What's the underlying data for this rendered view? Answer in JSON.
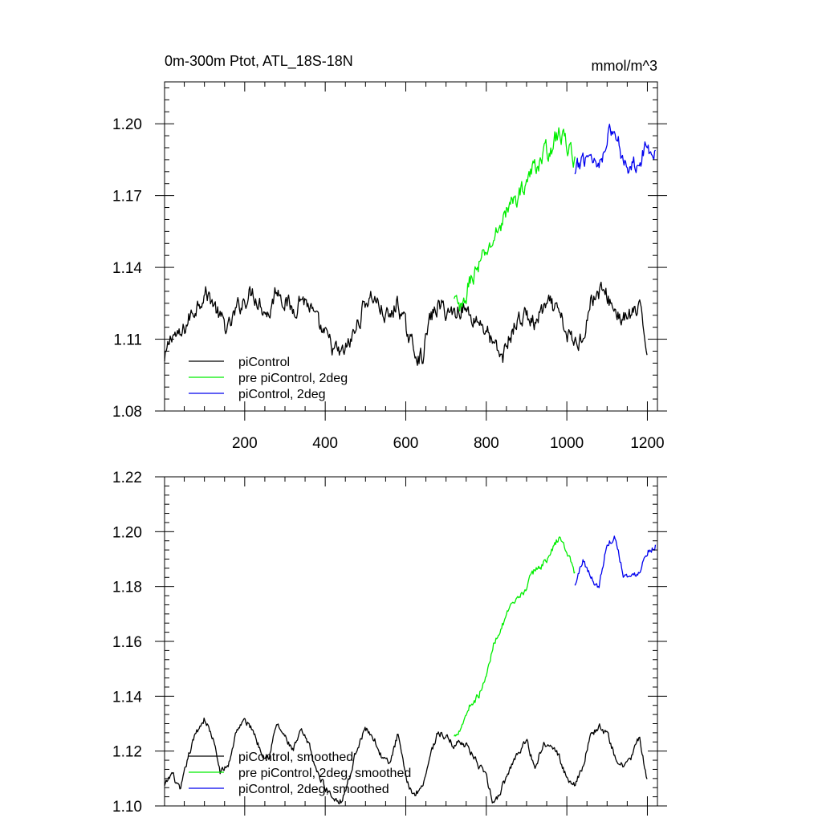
{
  "chart_data": [
    {
      "type": "line",
      "title": "0m-300m Ptot, ATL_18S-18N",
      "units": "mmol/m^3",
      "xlim": [
        1,
        1225
      ],
      "ylim": [
        1.08,
        1.2175
      ],
      "x_ticks": [
        200,
        400,
        600,
        800,
        1000,
        1200
      ],
      "x_tick_labels": [
        "200",
        "400",
        "600",
        "800",
        "1000",
        "1200"
      ],
      "y_ticks": [
        1.08,
        1.11,
        1.14,
        1.17,
        1.2
      ],
      "y_tick_labels": [
        "1.08",
        "1.11",
        "1.14",
        "1.17",
        "1.20"
      ],
      "legend_position": "bottom-left",
      "series": [
        {
          "name": "piControl",
          "color": "#000000",
          "x": [
            1,
            20,
            40,
            60,
            80,
            100,
            120,
            140,
            160,
            180,
            200,
            220,
            240,
            260,
            280,
            300,
            320,
            340,
            360,
            380,
            400,
            420,
            440,
            460,
            480,
            500,
            520,
            540,
            560,
            580,
            600,
            620,
            640,
            660,
            680,
            700,
            720,
            740,
            760,
            780,
            800,
            820,
            840,
            860,
            880,
            900,
            920,
            940,
            960,
            980,
            1000,
            1020,
            1040,
            1060,
            1080,
            1100,
            1120,
            1140,
            1160,
            1180,
            1200
          ],
          "y": [
            1.1,
            1.113,
            1.11,
            1.118,
            1.124,
            1.13,
            1.126,
            1.118,
            1.114,
            1.122,
            1.127,
            1.13,
            1.125,
            1.12,
            1.132,
            1.126,
            1.122,
            1.128,
            1.124,
            1.116,
            1.111,
            1.106,
            1.103,
            1.108,
            1.116,
            1.126,
            1.128,
            1.122,
            1.118,
            1.126,
            1.114,
            1.106,
            1.102,
            1.118,
            1.124,
            1.122,
            1.121,
            1.124,
            1.12,
            1.118,
            1.114,
            1.106,
            1.102,
            1.112,
            1.118,
            1.12,
            1.116,
            1.122,
            1.124,
            1.12,
            1.112,
            1.108,
            1.112,
            1.126,
            1.13,
            1.128,
            1.122,
            1.118,
            1.12,
            1.122,
            1.106
          ],
          "noise_amplitude": 0.0045
        },
        {
          "name": "pre piControl, 2deg",
          "color": "#00ee00",
          "x": [
            720,
            740,
            760,
            780,
            800,
            820,
            840,
            860,
            880,
            900,
            920,
            940,
            960,
            980,
            1000,
            1020
          ],
          "y": [
            1.126,
            1.121,
            1.135,
            1.14,
            1.146,
            1.152,
            1.16,
            1.166,
            1.17,
            1.176,
            1.182,
            1.186,
            1.19,
            1.196,
            1.192,
            1.184
          ],
          "noise_amplitude": 0.0045
        },
        {
          "name": "piControl, 2deg",
          "color": "#0000ee",
          "x": [
            1020,
            1040,
            1060,
            1080,
            1100,
            1120,
            1140,
            1160,
            1180,
            1200,
            1220
          ],
          "y": [
            1.178,
            1.186,
            1.188,
            1.182,
            1.196,
            1.196,
            1.186,
            1.182,
            1.186,
            1.19,
            1.19
          ],
          "noise_amplitude": 0.0045
        }
      ]
    },
    {
      "type": "line",
      "xlim": [
        1,
        1225
      ],
      "ylim": [
        1.1,
        1.22
      ],
      "y_ticks": [
        1.1,
        1.12,
        1.14,
        1.16,
        1.18,
        1.2,
        1.22
      ],
      "y_tick_labels": [
        "1.10",
        "1.12",
        "1.14",
        "1.16",
        "1.18",
        "1.20",
        "1.22"
      ],
      "legend_position": "bottom-left",
      "series": [
        {
          "name": "piControl, smoothed",
          "color": "#000000",
          "x": [
            1,
            20,
            40,
            60,
            80,
            100,
            120,
            140,
            160,
            180,
            200,
            220,
            240,
            260,
            280,
            300,
            320,
            340,
            360,
            380,
            400,
            420,
            440,
            460,
            480,
            500,
            520,
            540,
            560,
            580,
            600,
            620,
            640,
            660,
            680,
            700,
            720,
            740,
            760,
            780,
            800,
            820,
            840,
            860,
            880,
            900,
            920,
            940,
            960,
            980,
            1000,
            1020,
            1040,
            1060,
            1080,
            1100,
            1120,
            1140,
            1160,
            1180,
            1200
          ],
          "y": [
            1.107,
            1.112,
            1.105,
            1.118,
            1.127,
            1.132,
            1.125,
            1.112,
            1.115,
            1.128,
            1.131,
            1.128,
            1.12,
            1.118,
            1.13,
            1.125,
            1.12,
            1.127,
            1.122,
            1.112,
            1.107,
            1.103,
            1.102,
            1.11,
            1.122,
            1.128,
            1.125,
            1.118,
            1.115,
            1.126,
            1.11,
            1.104,
            1.107,
            1.118,
            1.127,
            1.125,
            1.122,
            1.124,
            1.12,
            1.115,
            1.11,
            1.1,
            1.107,
            1.114,
            1.12,
            1.124,
            1.114,
            1.122,
            1.124,
            1.118,
            1.11,
            1.108,
            1.115,
            1.126,
            1.129,
            1.126,
            1.118,
            1.114,
            1.118,
            1.125,
            1.108
          ],
          "noise_amplitude": 0.0015
        },
        {
          "name": "pre piControl, 2deg, smoothed",
          "color": "#00ee00",
          "x": [
            720,
            740,
            760,
            780,
            800,
            820,
            840,
            860,
            880,
            900,
            920,
            940,
            960,
            980,
            1000,
            1020
          ],
          "y": [
            1.125,
            1.13,
            1.137,
            1.14,
            1.147,
            1.16,
            1.166,
            1.172,
            1.175,
            1.18,
            1.186,
            1.188,
            1.192,
            1.198,
            1.193,
            1.185
          ],
          "noise_amplitude": 0.0015
        },
        {
          "name": "piControl, 2deg, smoothed",
          "color": "#0000ee",
          "x": [
            1020,
            1040,
            1060,
            1080,
            1100,
            1120,
            1140,
            1160,
            1180,
            1200,
            1220
          ],
          "y": [
            1.18,
            1.19,
            1.183,
            1.18,
            1.196,
            1.198,
            1.185,
            1.183,
            1.186,
            1.193,
            1.195
          ],
          "noise_amplitude": 0.0015
        }
      ]
    }
  ]
}
